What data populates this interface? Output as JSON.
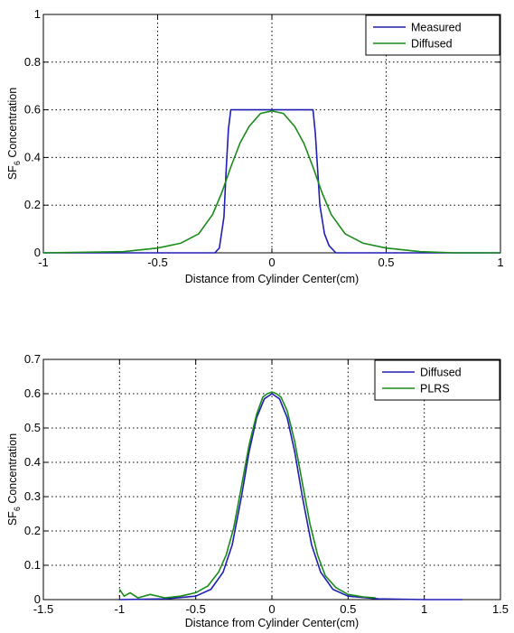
{
  "chart_data": [
    {
      "type": "line",
      "xlabel": "Distance from Cylinder Center(cm)",
      "ylabel_main": "SF",
      "ylabel_sub": "6",
      "ylabel_rest": " Concentration",
      "xlim": [
        -1,
        1
      ],
      "ylim": [
        0,
        1
      ],
      "xticks": [
        -1,
        -0.5,
        0,
        0.5,
        1
      ],
      "xtick_labels": [
        "-1",
        "-0.5",
        "0",
        "0.5",
        "1"
      ],
      "yticks": [
        0,
        0.2,
        0.4,
        0.6,
        0.8,
        1
      ],
      "ytick_labels": [
        "0",
        "0.2",
        "0.4",
        "0.6",
        "0.8",
        "1"
      ],
      "grid": true,
      "legend_position": "top-right",
      "series": [
        {
          "name": "Measured",
          "color": "#1f1fb4",
          "x": [
            -1.0,
            -0.25,
            -0.23,
            -0.21,
            -0.2,
            -0.19,
            -0.18,
            0.18,
            0.19,
            0.2,
            0.21,
            0.23,
            0.25,
            0.28,
            1.0
          ],
          "y": [
            0.0,
            0.0,
            0.02,
            0.15,
            0.35,
            0.52,
            0.6,
            0.6,
            0.5,
            0.35,
            0.2,
            0.08,
            0.03,
            0.0,
            0.0
          ]
        },
        {
          "name": "Diffused",
          "color": "#1a8a1a",
          "x": [
            -1.0,
            -0.65,
            -0.5,
            -0.4,
            -0.32,
            -0.26,
            -0.22,
            -0.18,
            -0.14,
            -0.1,
            -0.05,
            0.0,
            0.05,
            0.1,
            0.14,
            0.18,
            0.22,
            0.26,
            0.32,
            0.4,
            0.5,
            0.65,
            0.8,
            1.0
          ],
          "y": [
            0.0,
            0.005,
            0.02,
            0.04,
            0.08,
            0.16,
            0.25,
            0.36,
            0.46,
            0.53,
            0.585,
            0.595,
            0.585,
            0.53,
            0.46,
            0.36,
            0.25,
            0.16,
            0.08,
            0.04,
            0.02,
            0.005,
            0.0,
            0.0
          ]
        }
      ]
    },
    {
      "type": "line",
      "xlabel": "Distance from Cylinder Center(cm)",
      "ylabel_main": "SF",
      "ylabel_sub": "6",
      "ylabel_rest": " Concentration",
      "xlim": [
        -1.5,
        1.5
      ],
      "ylim": [
        0,
        0.7
      ],
      "xticks": [
        -1.5,
        -1,
        -0.5,
        0,
        0.5,
        1,
        1.5
      ],
      "xtick_labels": [
        "-1.5",
        "-1",
        "-0.5",
        "0",
        "0.5",
        "1",
        "1.5"
      ],
      "yticks": [
        0,
        0.1,
        0.2,
        0.3,
        0.4,
        0.5,
        0.6,
        0.7
      ],
      "ytick_labels": [
        "0",
        "0.1",
        "0.2",
        "0.3",
        "0.4",
        "0.5",
        "0.6",
        "0.7"
      ],
      "grid": true,
      "legend_position": "top-right",
      "series": [
        {
          "name": "Diffused",
          "color": "#1f1fb4",
          "x": [
            -1.0,
            -0.7,
            -0.5,
            -0.4,
            -0.32,
            -0.26,
            -0.2,
            -0.15,
            -0.1,
            -0.05,
            0.0,
            0.05,
            0.1,
            0.15,
            0.2,
            0.26,
            0.32,
            0.4,
            0.5,
            0.7,
            1.0,
            1.25
          ],
          "y": [
            0.0,
            0.002,
            0.01,
            0.03,
            0.08,
            0.16,
            0.3,
            0.43,
            0.53,
            0.585,
            0.6,
            0.585,
            0.53,
            0.43,
            0.3,
            0.16,
            0.08,
            0.03,
            0.01,
            0.002,
            0.0,
            0.0
          ]
        },
        {
          "name": "PLRS",
          "color": "#1a8a1a",
          "x": [
            -1.0,
            -0.97,
            -0.93,
            -0.88,
            -0.8,
            -0.7,
            -0.6,
            -0.5,
            -0.42,
            -0.35,
            -0.3,
            -0.25,
            -0.2,
            -0.15,
            -0.1,
            -0.06,
            -0.03,
            0.0,
            0.03,
            0.06,
            0.1,
            0.15,
            0.2,
            0.25,
            0.3,
            0.35,
            0.42,
            0.5,
            0.6,
            0.68
          ],
          "y": [
            0.03,
            0.01,
            0.02,
            0.005,
            0.015,
            0.005,
            0.01,
            0.02,
            0.04,
            0.08,
            0.13,
            0.21,
            0.33,
            0.45,
            0.54,
            0.59,
            0.6,
            0.605,
            0.6,
            0.59,
            0.55,
            0.46,
            0.34,
            0.22,
            0.13,
            0.07,
            0.035,
            0.015,
            0.008,
            0.005
          ]
        }
      ]
    }
  ]
}
